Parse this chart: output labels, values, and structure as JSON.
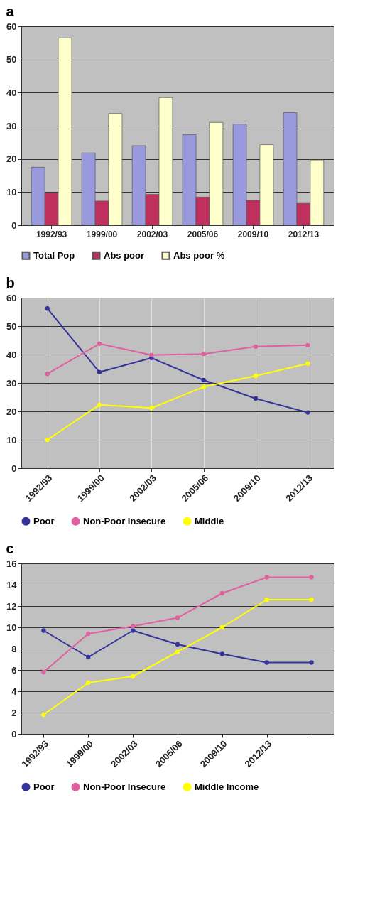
{
  "chart_data": [
    {
      "type": "bar",
      "title": "a",
      "categories": [
        "1992/93",
        "1999/00",
        "2002/03",
        "2005/06",
        "2009/10",
        "2012/13"
      ],
      "ylim": [
        0,
        60
      ],
      "yticks": [
        0,
        10,
        20,
        30,
        40,
        50,
        60
      ],
      "grid": "y",
      "legend": "bottom",
      "series": [
        {
          "name": "Total Pop",
          "color": "#9999dd",
          "values": [
            17.5,
            21.8,
            24,
            27.3,
            30.5,
            34
          ]
        },
        {
          "name": "Abs poor",
          "color": "#c0305f",
          "values": [
            9.8,
            7.3,
            9.3,
            8.5,
            7.5,
            6.6
          ]
        },
        {
          "name": "Abs poor %",
          "color": "#ffffcc",
          "values": [
            56.5,
            33.7,
            38.5,
            31,
            24.3,
            19.7
          ]
        }
      ]
    },
    {
      "type": "line",
      "title": "b",
      "categories": [
        "1992/93",
        "1999/00",
        "2002/03",
        "2005/06",
        "2009/10",
        "2012/13"
      ],
      "ylim": [
        0,
        60
      ],
      "yticks": [
        0,
        10,
        20,
        30,
        40,
        50,
        60
      ],
      "grid": true,
      "legend": "bottom",
      "marker": "circle",
      "series": [
        {
          "name": "Poor",
          "color": "#333399",
          "values": [
            56.2,
            33.8,
            38.8,
            31,
            24.5,
            19.6
          ]
        },
        {
          "name": "Non-Poor Insecure",
          "color": "#e060a0",
          "values": [
            33.2,
            43.8,
            39.8,
            40.2,
            42.8,
            43.3
          ]
        },
        {
          "name": "Middle",
          "color": "#ffff00",
          "values": [
            10,
            22.3,
            21.2,
            28.6,
            32.5,
            36.8
          ]
        }
      ]
    },
    {
      "type": "line",
      "title": "c",
      "categories": [
        "1992/93",
        "1999/00",
        "2002/03",
        "2005/06",
        "2009/10",
        "2012/13",
        null
      ],
      "ylim": [
        0,
        16
      ],
      "yticks": [
        0,
        2,
        4,
        6,
        8,
        10,
        12,
        14,
        16
      ],
      "grid": "y",
      "legend": "bottom",
      "marker": "circle",
      "series": [
        {
          "name": "Poor",
          "color": "#333399",
          "values": [
            9.7,
            7.2,
            9.7,
            8.4,
            7.5,
            6.7,
            6.7
          ]
        },
        {
          "name": "Non-Poor Insecure",
          "color": "#e060a0",
          "values": [
            5.8,
            9.4,
            10.1,
            10.9,
            13.2,
            14.7,
            14.7
          ]
        },
        {
          "name": "Middle Income",
          "color": "#ffff00",
          "values": [
            1.8,
            4.8,
            5.4,
            7.7,
            10,
            12.6,
            12.6
          ]
        }
      ]
    }
  ]
}
